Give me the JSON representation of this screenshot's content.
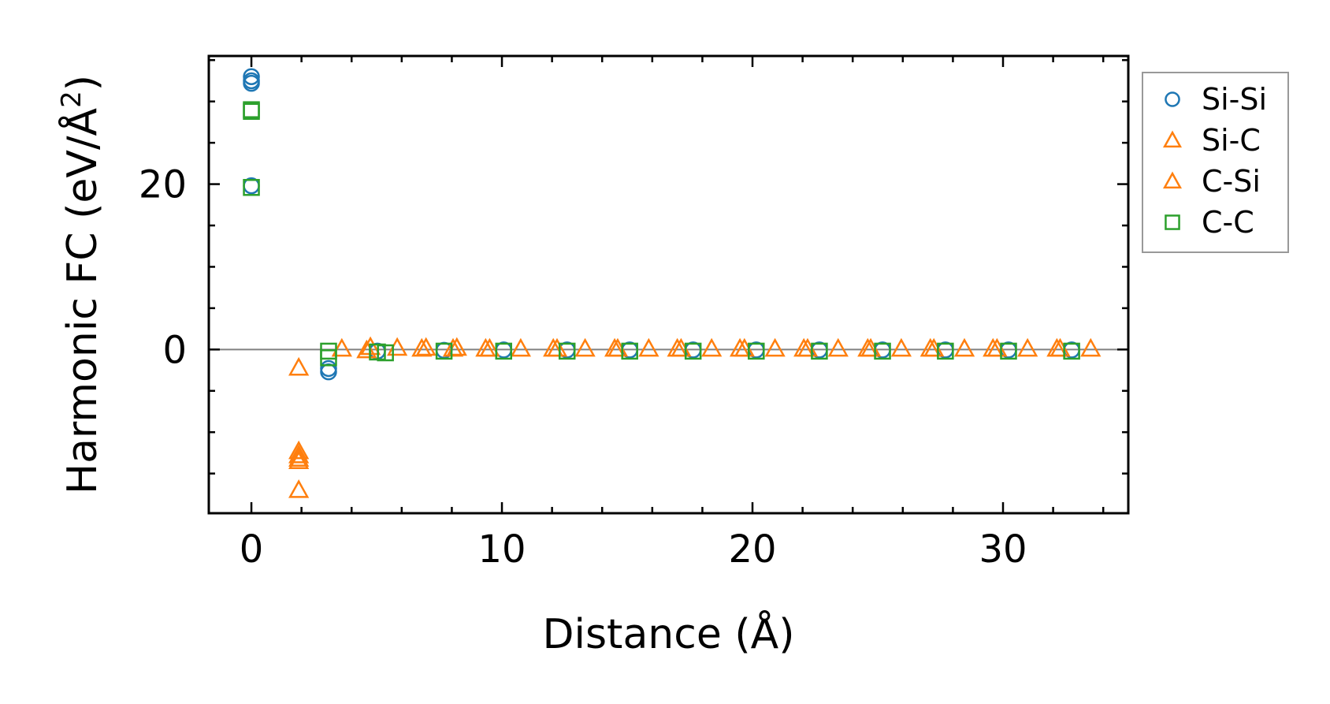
{
  "chart_data": {
    "type": "scatter",
    "xlabel": "Distance (Å)",
    "ylabel": "Harmonic FC (eV/Å²)",
    "ylabel_main": "Harmonic FC (eV/Å",
    "ylabel_sup": "2",
    "ylabel_close": ")",
    "xlim": [
      -1.7,
      35.0
    ],
    "ylim": [
      -19.8,
      35.5
    ],
    "xticks": [
      0,
      10,
      20,
      30
    ],
    "xtick_labels": [
      "0",
      "10",
      "20",
      "30"
    ],
    "yticks": [
      0,
      20
    ],
    "ytick_labels": [
      "0",
      "20"
    ],
    "grid": false,
    "zero_line": true,
    "legend_position": "outside-right",
    "series": [
      {
        "name": "Si-Si",
        "marker": "circle",
        "color": "#1f77b4",
        "points": [
          [
            0,
            33.0
          ],
          [
            0,
            32.5
          ],
          [
            0,
            32.2
          ],
          [
            0,
            19.8
          ],
          [
            3.08,
            -2.3
          ],
          [
            3.08,
            -2.7
          ],
          [
            5.03,
            -0.2
          ],
          [
            7.69,
            -0.1
          ],
          [
            10.07,
            -0.05
          ],
          [
            12.6,
            -0.05
          ],
          [
            15.1,
            -0.05
          ],
          [
            17.63,
            -0.05
          ],
          [
            20.15,
            -0.05
          ],
          [
            22.67,
            -0.05
          ],
          [
            25.19,
            -0.05
          ],
          [
            27.7,
            -0.05
          ],
          [
            30.22,
            -0.05
          ],
          [
            32.74,
            -0.05
          ]
        ]
      },
      {
        "name": "Si-C",
        "marker": "triangle",
        "color": "#ff7f0e",
        "points": [
          [
            1.89,
            -2.2
          ],
          [
            1.89,
            -12.8
          ],
          [
            1.89,
            -13.5
          ],
          [
            1.89,
            -17.0
          ],
          [
            3.61,
            0.1
          ],
          [
            4.75,
            0.3
          ],
          [
            5.82,
            0.2
          ],
          [
            6.97,
            0.2
          ],
          [
            8.2,
            0.2
          ],
          [
            9.51,
            0.1
          ],
          [
            10.75,
            0.1
          ],
          [
            12.05,
            0.1
          ],
          [
            13.32,
            0.1
          ],
          [
            14.62,
            0.1
          ],
          [
            15.86,
            0.1
          ],
          [
            17.15,
            0.1
          ],
          [
            18.37,
            0.1
          ],
          [
            19.68,
            0.1
          ],
          [
            20.9,
            0.1
          ],
          [
            22.2,
            0.1
          ],
          [
            23.42,
            0.1
          ],
          [
            24.72,
            0.1
          ],
          [
            25.94,
            0.1
          ],
          [
            27.24,
            0.1
          ],
          [
            28.46,
            0.1
          ],
          [
            29.76,
            0.1
          ],
          [
            30.98,
            0.1
          ],
          [
            32.28,
            0.1
          ],
          [
            33.5,
            0.1
          ]
        ]
      },
      {
        "name": "C-Si",
        "marker": "triangle",
        "color": "#ff7f0e",
        "points": [
          [
            1.89,
            -12.3
          ],
          [
            1.89,
            -13.2
          ],
          [
            4.6,
            -0.1
          ],
          [
            6.8,
            0.1
          ],
          [
            8.05,
            0.1
          ],
          [
            9.35,
            0.1
          ],
          [
            12.2,
            0.1
          ],
          [
            14.5,
            0.1
          ],
          [
            17.0,
            0.1
          ],
          [
            19.5,
            0.1
          ],
          [
            22.05,
            0.1
          ],
          [
            24.6,
            0.1
          ],
          [
            27.1,
            0.1
          ],
          [
            29.6,
            0.1
          ],
          [
            32.15,
            0.1
          ]
        ]
      },
      {
        "name": "C-C",
        "marker": "square",
        "color": "#2ca02c",
        "points": [
          [
            0,
            29.0
          ],
          [
            0,
            28.8
          ],
          [
            0,
            19.6
          ],
          [
            3.08,
            -0.2
          ],
          [
            3.08,
            -1.0
          ],
          [
            5.03,
            -0.3
          ],
          [
            5.35,
            -0.4
          ],
          [
            7.69,
            -0.2
          ],
          [
            10.07,
            -0.2
          ],
          [
            12.6,
            -0.2
          ],
          [
            15.1,
            -0.2
          ],
          [
            17.63,
            -0.2
          ],
          [
            20.15,
            -0.2
          ],
          [
            22.67,
            -0.2
          ],
          [
            25.19,
            -0.2
          ],
          [
            27.7,
            -0.2
          ],
          [
            30.22,
            -0.2
          ],
          [
            32.74,
            -0.2
          ]
        ]
      }
    ],
    "colors": {
      "axis": "#000000",
      "zero_line": "#808080",
      "legend_border": "#999999"
    }
  }
}
